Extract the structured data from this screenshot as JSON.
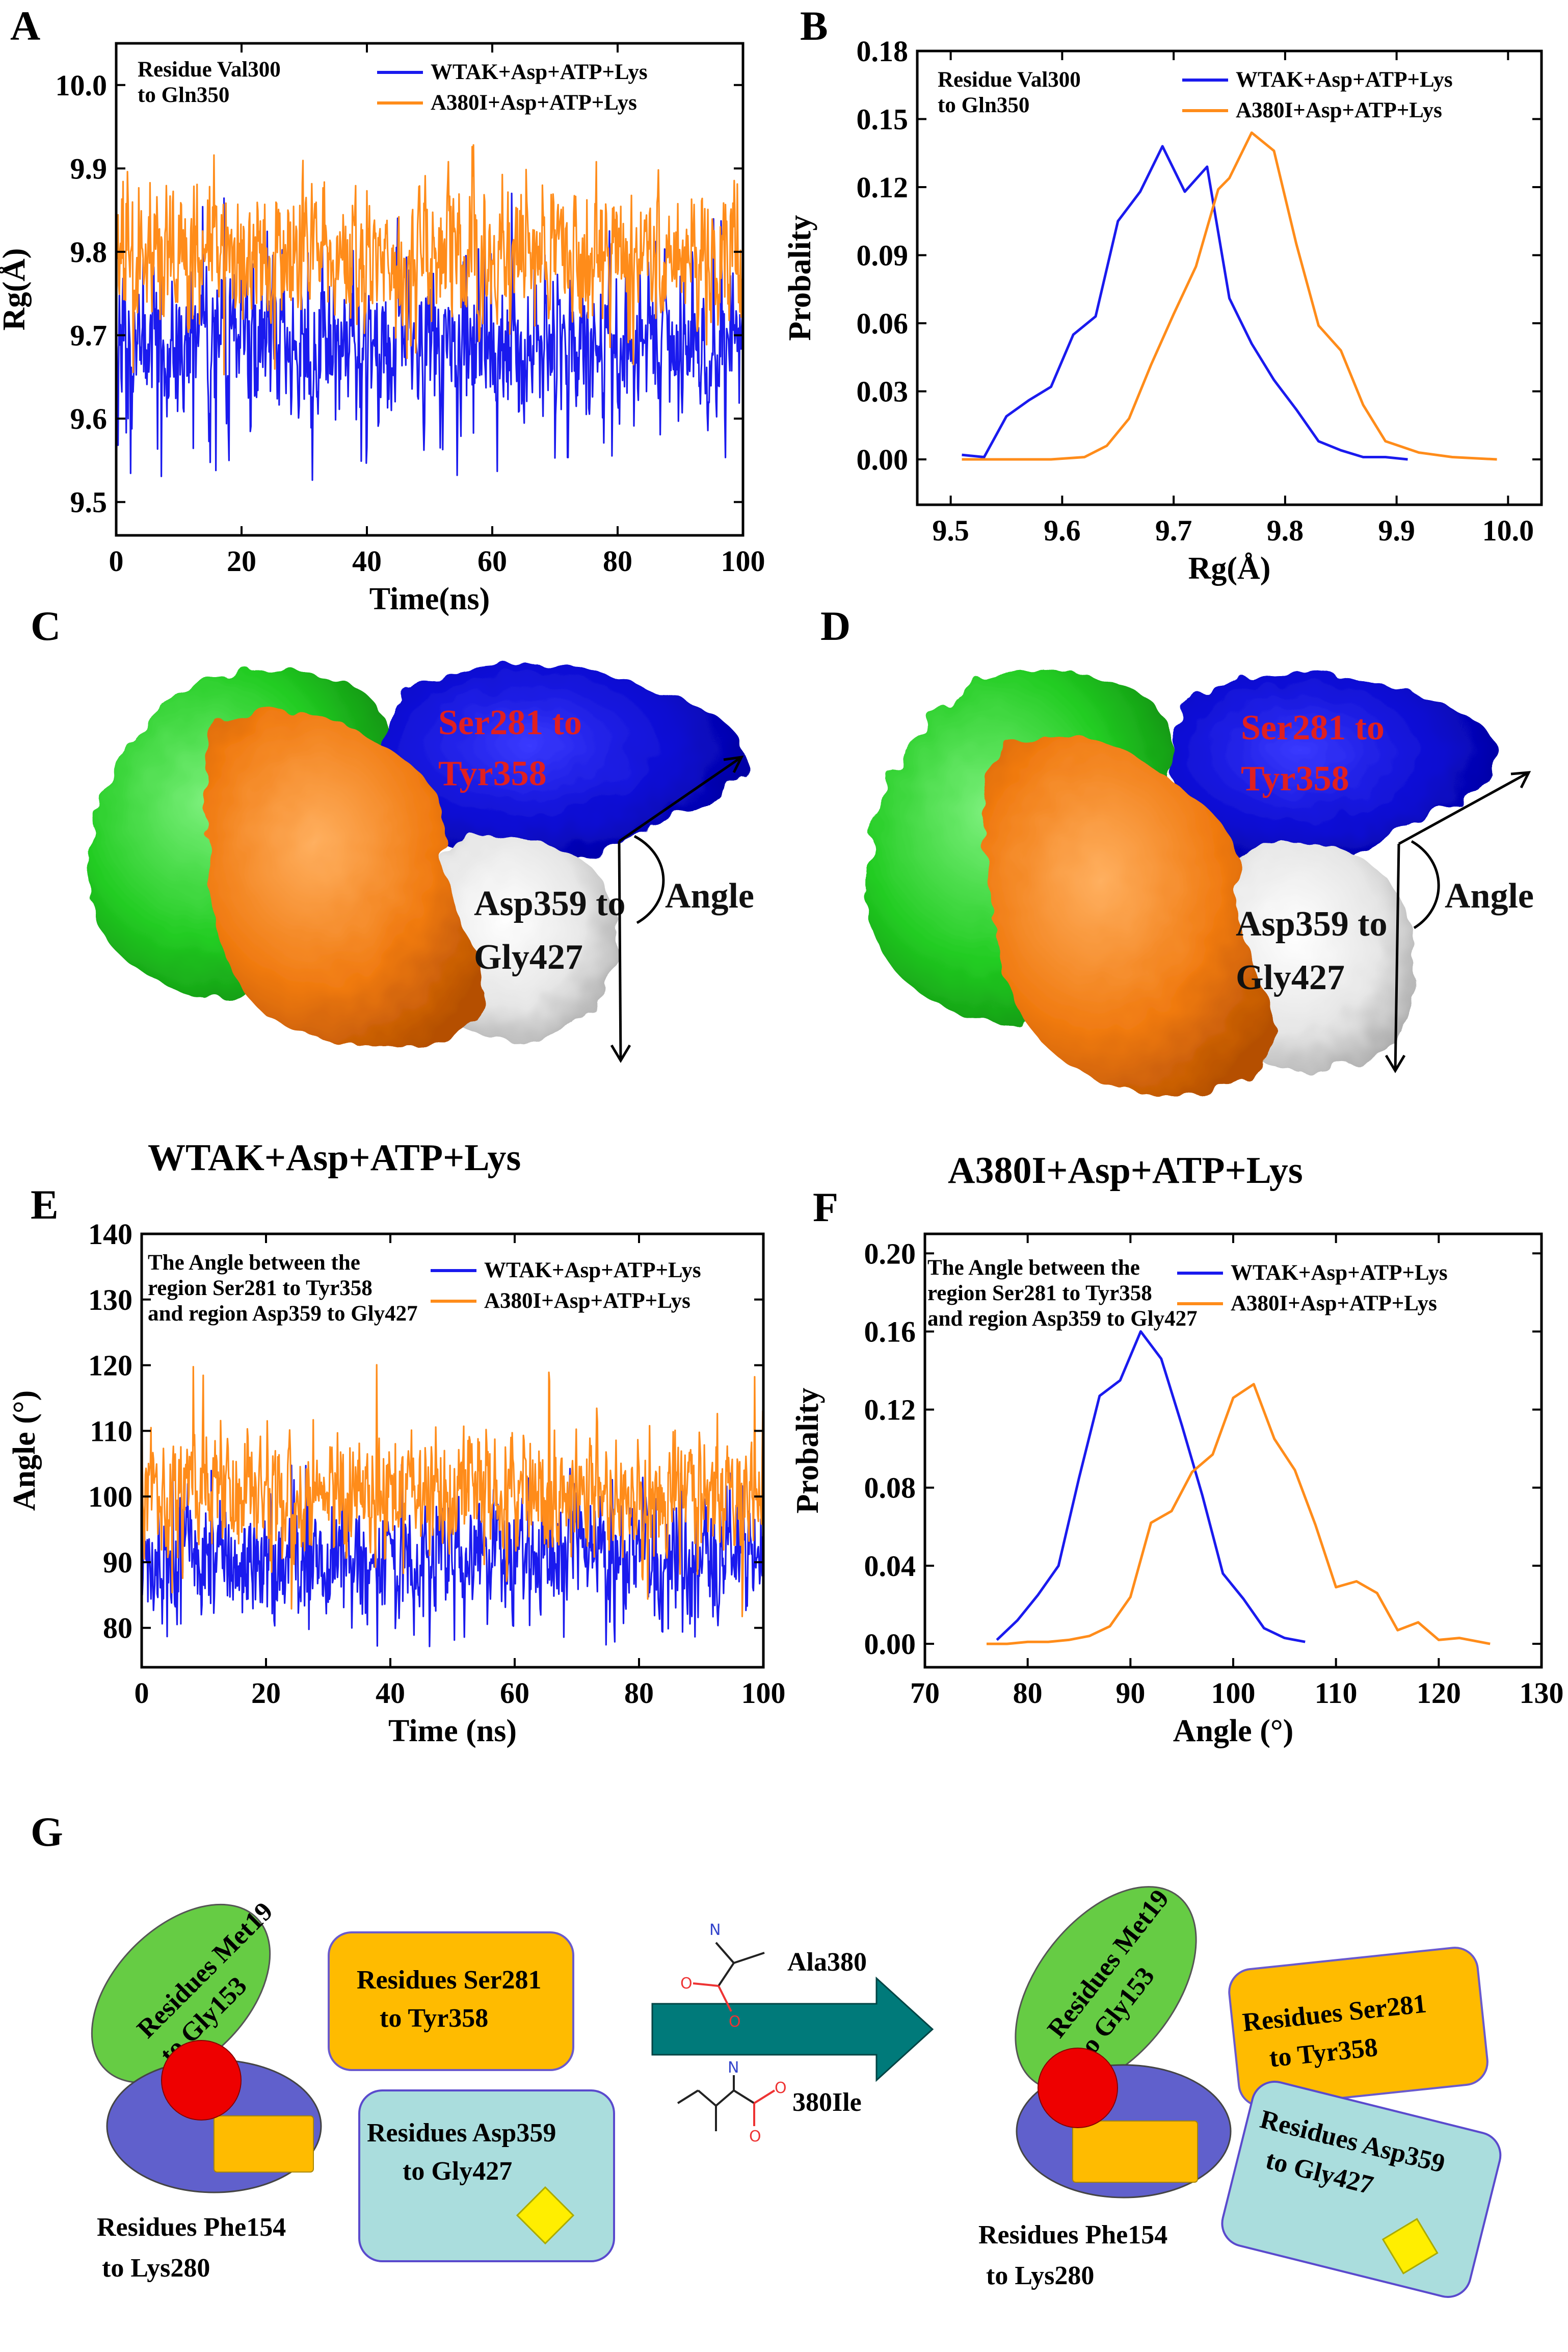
{
  "panels": {
    "A": "A",
    "B": "B",
    "C": "C",
    "D": "D",
    "E": "E",
    "F": "F",
    "G": "G"
  },
  "colors": {
    "wt": "#1a1aee",
    "mut": "#ff8c1a"
  },
  "chart_data": [
    {
      "id": "A",
      "type": "line",
      "xlabel": "Time(ns)",
      "ylabel": "Rg(Å)",
      "xlim": [
        0,
        100
      ],
      "ylim": [
        9.46,
        10.05
      ],
      "xticks": [
        "0",
        "20",
        "40",
        "60",
        "80",
        "100"
      ],
      "yticks": [
        "9.5",
        "9.6",
        "9.7",
        "9.8",
        "9.9",
        "10.0"
      ],
      "annotation": [
        "Residue Val300",
        "to Gln350"
      ],
      "series": [
        {
          "name": "WTAK+Asp+ATP+Lys",
          "color": "#1a1aee",
          "mean": 9.69,
          "sd": 0.045,
          "min": 9.51,
          "max": 9.87
        },
        {
          "name": "A380I+Asp+ATP+Lys",
          "color": "#ff8c1a",
          "mean": 9.79,
          "sd": 0.04,
          "min": 9.64,
          "max": 9.97
        }
      ]
    },
    {
      "id": "B",
      "type": "line",
      "xlabel": "Rg(Å)",
      "ylabel": "Probality",
      "xlim": [
        9.47,
        10.03
      ],
      "ylim": [
        -0.02,
        0.18
      ],
      "xticks": [
        "9.5",
        "9.6",
        "9.7",
        "9.8",
        "9.9",
        "10.0"
      ],
      "yticks": [
        "0.00",
        "0.03",
        "0.06",
        "0.09",
        "0.12",
        "0.15",
        "0.18"
      ],
      "annotation": [
        "Residue Val300",
        "to Gln350"
      ],
      "series": [
        {
          "name": "WTAK+Asp+ATP+Lys",
          "color": "#1a1aee",
          "x": [
            9.51,
            9.53,
            9.55,
            9.57,
            9.59,
            9.61,
            9.63,
            9.65,
            9.67,
            9.69,
            9.71,
            9.73,
            9.75,
            9.77,
            9.79,
            9.81,
            9.83,
            9.85,
            9.87,
            9.89,
            9.91
          ],
          "y": [
            0.002,
            0.001,
            0.019,
            0.026,
            0.032,
            0.055,
            0.063,
            0.105,
            0.118,
            0.138,
            0.118,
            0.129,
            0.071,
            0.051,
            0.035,
            0.022,
            0.008,
            0.004,
            0.001,
            0.001,
            0.0
          ]
        },
        {
          "name": "A380I+Asp+ATP+Lys",
          "color": "#ff8c1a",
          "x": [
            9.51,
            9.55,
            9.59,
            9.62,
            9.64,
            9.66,
            9.68,
            9.7,
            9.72,
            9.74,
            9.75,
            9.77,
            9.79,
            9.81,
            9.83,
            9.85,
            9.87,
            9.89,
            9.92,
            9.95,
            9.99
          ],
          "y": [
            0.0,
            0.0,
            0.0,
            0.001,
            0.006,
            0.018,
            0.042,
            0.064,
            0.085,
            0.119,
            0.124,
            0.144,
            0.136,
            0.095,
            0.059,
            0.048,
            0.024,
            0.008,
            0.003,
            0.001,
            0.0
          ]
        }
      ]
    },
    {
      "id": "E",
      "type": "line",
      "xlabel": "Time (ns)",
      "ylabel": "Angle (°)",
      "xlim": [
        0,
        100
      ],
      "ylim": [
        74,
        140
      ],
      "xticks": [
        "0",
        "20",
        "40",
        "60",
        "80",
        "100"
      ],
      "yticks": [
        "80",
        "90",
        "100",
        "110",
        "120",
        "130",
        "140"
      ],
      "annotation": [
        "The Angle between the",
        "region Ser281 to Tyr358",
        "and region Asp359 to Gly427"
      ],
      "series": [
        {
          "name": "WTAK+Asp+ATP+Lys",
          "color": "#1a1aee",
          "mean": 90.5,
          "sd": 4.5,
          "min": 77,
          "max": 105
        },
        {
          "name": "A380I+Asp+ATP+Lys",
          "color": "#ff8c1a",
          "mean": 100,
          "sd": 4.5,
          "min": 80,
          "max": 122.5
        }
      ]
    },
    {
      "id": "F",
      "type": "line",
      "xlabel": "Angle (°)",
      "ylabel": "Probality",
      "xlim": [
        70,
        130
      ],
      "ylim": [
        -0.012,
        0.21
      ],
      "xticks": [
        "70",
        "80",
        "90",
        "100",
        "110",
        "120",
        "130"
      ],
      "yticks": [
        "0.00",
        "0.04",
        "0.08",
        "0.12",
        "0.16",
        "0.20"
      ],
      "annotation": [
        "The Angle between the",
        "region Ser281 to Tyr358",
        "and region Asp359 to Gly427"
      ],
      "series": [
        {
          "name": "WTAK+Asp+ATP+Lys",
          "color": "#1a1aee",
          "x": [
            77,
            79,
            81,
            83,
            85,
            87,
            89,
            91,
            93,
            95,
            97,
            99,
            101,
            103,
            105,
            107
          ],
          "y": [
            0.002,
            0.012,
            0.025,
            0.04,
            0.085,
            0.127,
            0.135,
            0.16,
            0.146,
            0.112,
            0.076,
            0.036,
            0.023,
            0.008,
            0.003,
            0.001
          ]
        },
        {
          "name": "A380I+Asp+ATP+Lys",
          "color": "#ff8c1a",
          "x": [
            76,
            78,
            80,
            82,
            84,
            86,
            88,
            90,
            92,
            94,
            96,
            98,
            100,
            102,
            104,
            106,
            108,
            110,
            112,
            114,
            116,
            118,
            120,
            122,
            125
          ],
          "y": [
            0.0,
            0.0,
            0.001,
            0.001,
            0.002,
            0.004,
            0.009,
            0.024,
            0.062,
            0.068,
            0.088,
            0.097,
            0.126,
            0.133,
            0.105,
            0.089,
            0.061,
            0.029,
            0.032,
            0.026,
            0.007,
            0.011,
            0.002,
            0.003,
            0.0
          ]
        }
      ]
    }
  ],
  "structures": {
    "C": {
      "caption": "WTAK+Asp+ATP+Lys",
      "label_blue": [
        "Ser281 to",
        "Tyr358"
      ],
      "label_white": [
        "Asp359 to",
        "Gly427"
      ],
      "angle_label": "Angle"
    },
    "D": {
      "caption": "A380I+Asp+ATP+Lys",
      "label_blue": [
        "Ser281 to",
        "Tyr358"
      ],
      "label_white": [
        "Asp359 to",
        "Gly427"
      ],
      "angle_label": "Angle"
    }
  },
  "schematic": {
    "green": [
      "Residues Met19",
      "to Gly153"
    ],
    "yellow": [
      "Residues Ser281",
      "to Tyr358"
    ],
    "cyan": [
      "Residues Asp359",
      "to Gly427"
    ],
    "purple": [
      "Residues Phe154",
      "to Lys280"
    ],
    "ala": "Ala380",
    "ile": "380Ile",
    "atom_n": "N",
    "atom_o": "O"
  }
}
